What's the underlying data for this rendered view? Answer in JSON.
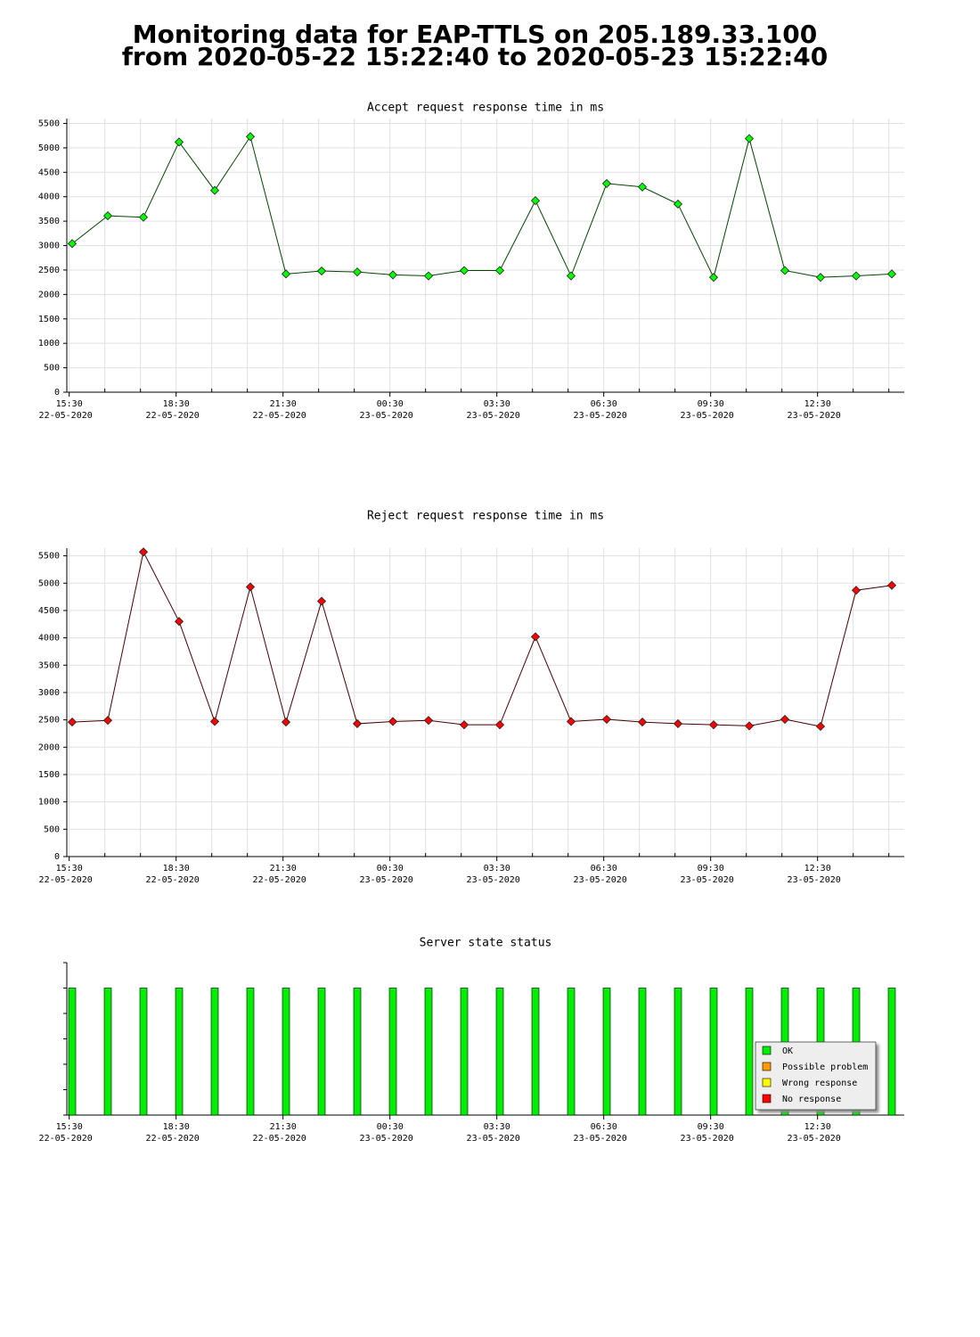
{
  "title": [
    "Monitoring data for EAP-TTLS on 205.189.33.100",
    "from 2020-05-22 15:22:40 to 2020-05-23 15:22:40"
  ],
  "chart_data": [
    {
      "type": "line",
      "title": "Accept request response time in ms",
      "title_color": "#005500",
      "line_color": "#004400",
      "marker_color": "#00ff00",
      "x": [
        "2020-05-22 15:35",
        "2020-05-22 16:35",
        "2020-05-22 17:35",
        "2020-05-22 18:35",
        "2020-05-22 19:35",
        "2020-05-22 20:35",
        "2020-05-22 21:35",
        "2020-05-22 22:35",
        "2020-05-22 23:35",
        "2020-05-23 00:35",
        "2020-05-23 01:35",
        "2020-05-23 02:35",
        "2020-05-23 03:35",
        "2020-05-23 04:35",
        "2020-05-23 05:35",
        "2020-05-23 06:35",
        "2020-05-23 07:35",
        "2020-05-23 08:35",
        "2020-05-23 09:35",
        "2020-05-23 10:35",
        "2020-05-23 11:35",
        "2020-05-23 12:35",
        "2020-05-23 13:35",
        "2020-05-23 14:35"
      ],
      "values": [
        3040,
        3610,
        3580,
        5120,
        4130,
        5230,
        2420,
        2480,
        2460,
        2400,
        2380,
        2490,
        2490,
        3920,
        2380,
        4270,
        4200,
        3850,
        2350,
        5190,
        2490,
        2350,
        2380,
        2420
      ],
      "xlim": [
        "2020-05-22 15:26",
        "2020-05-23 14:56"
      ],
      "xticks": [
        {
          "value": "2020-05-22 15:30",
          "label": [
            "15:30",
            "22-05-2020"
          ]
        },
        {
          "value": "2020-05-22 18:30",
          "label": [
            "18:30",
            "22-05-2020"
          ]
        },
        {
          "value": "2020-05-22 21:30",
          "label": [
            "21:30",
            "22-05-2020"
          ]
        },
        {
          "value": "2020-05-23 00:30",
          "label": [
            "00:30",
            "23-05-2020"
          ]
        },
        {
          "value": "2020-05-23 03:30",
          "label": [
            "03:30",
            "23-05-2020"
          ]
        },
        {
          "value": "2020-05-23 06:30",
          "label": [
            "06:30",
            "23-05-2020"
          ]
        },
        {
          "value": "2020-05-23 09:30",
          "label": [
            "09:30",
            "23-05-2020"
          ]
        },
        {
          "value": "2020-05-23 12:30",
          "label": [
            "12:30",
            "23-05-2020"
          ]
        }
      ],
      "xminorticks": [
        "2020-05-22 16:30",
        "2020-05-22 17:30",
        "2020-05-22 19:30",
        "2020-05-22 20:30",
        "2020-05-22 22:30",
        "2020-05-22 23:30",
        "2020-05-23 01:30",
        "2020-05-23 02:30",
        "2020-05-23 04:30",
        "2020-05-23 05:30",
        "2020-05-23 07:30",
        "2020-05-23 08:30",
        "2020-05-23 10:30",
        "2020-05-23 11:30",
        "2020-05-23 13:30",
        "2020-05-23 14:30"
      ],
      "ylim": [
        0,
        5600
      ],
      "yticks": [
        0,
        500,
        1000,
        1500,
        2000,
        2500,
        3000,
        3500,
        4000,
        4500,
        5000,
        5500
      ],
      "grid": true
    },
    {
      "type": "line",
      "title": "Reject request response time in ms",
      "title_color": "#550000",
      "line_color": "#440000",
      "marker_color": "#ff0000",
      "x": [
        "2020-05-22 15:35",
        "2020-05-22 16:35",
        "2020-05-22 17:35",
        "2020-05-22 18:35",
        "2020-05-22 19:35",
        "2020-05-22 20:35",
        "2020-05-22 21:35",
        "2020-05-22 22:35",
        "2020-05-22 23:35",
        "2020-05-23 00:35",
        "2020-05-23 01:35",
        "2020-05-23 02:35",
        "2020-05-23 03:35",
        "2020-05-23 04:35",
        "2020-05-23 05:35",
        "2020-05-23 06:35",
        "2020-05-23 07:35",
        "2020-05-23 08:35",
        "2020-05-23 09:35",
        "2020-05-23 10:35",
        "2020-05-23 11:35",
        "2020-05-23 12:35",
        "2020-05-23 13:35",
        "2020-05-23 14:35"
      ],
      "values": [
        2460,
        2490,
        5570,
        4300,
        2470,
        4930,
        2460,
        4670,
        2430,
        2470,
        2490,
        2410,
        2410,
        4020,
        2470,
        2510,
        2460,
        2430,
        2410,
        2390,
        2510,
        2380,
        4870,
        4960
      ],
      "xlim": [
        "2020-05-22 15:26",
        "2020-05-23 14:56"
      ],
      "xticks": [
        {
          "value": "2020-05-22 15:30",
          "label": [
            "15:30",
            "22-05-2020"
          ]
        },
        {
          "value": "2020-05-22 18:30",
          "label": [
            "18:30",
            "22-05-2020"
          ]
        },
        {
          "value": "2020-05-22 21:30",
          "label": [
            "21:30",
            "22-05-2020"
          ]
        },
        {
          "value": "2020-05-23 00:30",
          "label": [
            "00:30",
            "23-05-2020"
          ]
        },
        {
          "value": "2020-05-23 03:30",
          "label": [
            "03:30",
            "23-05-2020"
          ]
        },
        {
          "value": "2020-05-23 06:30",
          "label": [
            "06:30",
            "23-05-2020"
          ]
        },
        {
          "value": "2020-05-23 09:30",
          "label": [
            "09:30",
            "23-05-2020"
          ]
        },
        {
          "value": "2020-05-23 12:30",
          "label": [
            "12:30",
            "23-05-2020"
          ]
        }
      ],
      "xminorticks": [
        "2020-05-22 16:30",
        "2020-05-22 17:30",
        "2020-05-22 19:30",
        "2020-05-22 20:30",
        "2020-05-22 22:30",
        "2020-05-22 23:30",
        "2020-05-23 01:30",
        "2020-05-23 02:30",
        "2020-05-23 04:30",
        "2020-05-23 05:30",
        "2020-05-23 07:30",
        "2020-05-23 08:30",
        "2020-05-23 10:30",
        "2020-05-23 11:30",
        "2020-05-23 13:30",
        "2020-05-23 14:30"
      ],
      "ylim": [
        0,
        5640
      ],
      "yticks": [
        0,
        500,
        1000,
        1500,
        2000,
        2500,
        3000,
        3500,
        4000,
        4500,
        5000,
        5500
      ],
      "grid": true
    },
    {
      "type": "bar",
      "title": "Server state status",
      "title_color": "#550000",
      "x": [
        "2020-05-22 15:35",
        "2020-05-22 16:35",
        "2020-05-22 17:35",
        "2020-05-22 18:35",
        "2020-05-22 19:35",
        "2020-05-22 20:35",
        "2020-05-22 21:35",
        "2020-05-22 22:35",
        "2020-05-22 23:35",
        "2020-05-23 00:35",
        "2020-05-23 01:35",
        "2020-05-23 02:35",
        "2020-05-23 03:35",
        "2020-05-23 04:35",
        "2020-05-23 05:35",
        "2020-05-23 06:35",
        "2020-05-23 07:35",
        "2020-05-23 08:35",
        "2020-05-23 09:35",
        "2020-05-23 10:35",
        "2020-05-23 11:35",
        "2020-05-23 12:35",
        "2020-05-23 13:35",
        "2020-05-23 14:35"
      ],
      "series": [
        {
          "name": "OK",
          "color": "#00ee00",
          "values": [
            1,
            1,
            1,
            1,
            1,
            1,
            1,
            1,
            1,
            1,
            1,
            1,
            1,
            1,
            1,
            1,
            1,
            1,
            1,
            1,
            1,
            1,
            1,
            1
          ]
        },
        {
          "name": "Possible problem",
          "color": "#ff9900"
        },
        {
          "name": "Wrong response",
          "color": "#ffff00"
        },
        {
          "name": "No response",
          "color": "#ff0000"
        }
      ],
      "xlim": [
        "2020-05-22 15:26",
        "2020-05-23 14:56"
      ],
      "xticks": [
        {
          "value": "2020-05-22 15:30",
          "label": [
            "15:30",
            "22-05-2020"
          ]
        },
        {
          "value": "2020-05-22 18:30",
          "label": [
            "18:30",
            "22-05-2020"
          ]
        },
        {
          "value": "2020-05-22 21:30",
          "label": [
            "21:30",
            "22-05-2020"
          ]
        },
        {
          "value": "2020-05-23 00:30",
          "label": [
            "00:30",
            "23-05-2020"
          ]
        },
        {
          "value": "2020-05-23 03:30",
          "label": [
            "03:30",
            "23-05-2020"
          ]
        },
        {
          "value": "2020-05-23 06:30",
          "label": [
            "06:30",
            "23-05-2020"
          ]
        },
        {
          "value": "2020-05-23 09:30",
          "label": [
            "09:30",
            "23-05-2020"
          ]
        },
        {
          "value": "2020-05-23 12:30",
          "label": [
            "12:30",
            "23-05-2020"
          ]
        }
      ],
      "xminorticks": [
        "2020-05-22 16:30",
        "2020-05-22 17:30",
        "2020-05-22 19:30",
        "2020-05-22 20:30",
        "2020-05-22 22:30",
        "2020-05-22 23:30",
        "2020-05-23 01:30",
        "2020-05-23 02:30",
        "2020-05-23 04:30",
        "2020-05-23 05:30",
        "2020-05-23 07:30",
        "2020-05-23 08:30",
        "2020-05-23 10:30",
        "2020-05-23 11:30",
        "2020-05-23 13:30",
        "2020-05-23 14:30"
      ],
      "ylim": [
        0,
        1.2
      ],
      "ytick_marks": [
        0,
        0.2,
        0.4,
        0.6,
        0.8,
        1,
        1.2
      ],
      "grid": false,
      "legend": "lower right"
    }
  ]
}
